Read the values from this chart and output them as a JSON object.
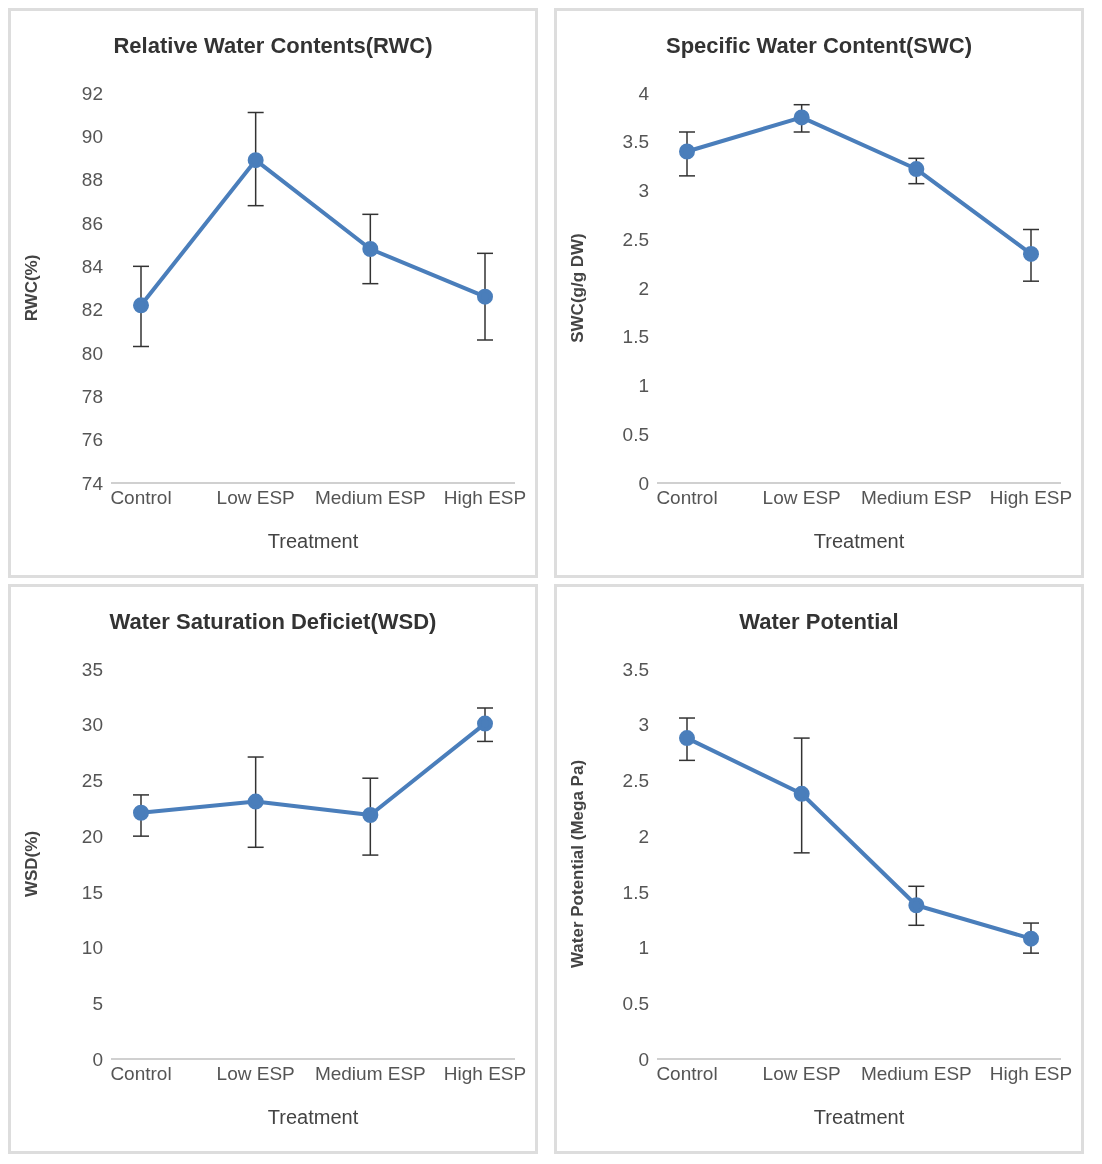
{
  "chart_data": [
    {
      "type": "line",
      "title": "Relative Water Contents(RWC)",
      "xlabel": "Treatment",
      "ylabel": "RWC(%)",
      "categories": [
        "Control",
        "Low ESP",
        "Medium ESP",
        "High ESP"
      ],
      "series": [
        {
          "color": "#4a7ebb",
          "values": [
            82.2,
            88.9,
            84.8,
            82.6
          ],
          "errors": [
            [
              80.3,
              84.0
            ],
            [
              86.8,
              91.1
            ],
            [
              83.2,
              86.4
            ],
            [
              80.6,
              84.6
            ]
          ]
        }
      ],
      "ylim": [
        74,
        92
      ],
      "yticks": [
        74,
        76,
        78,
        80,
        82,
        84,
        86,
        88,
        90,
        92
      ],
      "grid": false,
      "legend": false,
      "marker": "circle",
      "line_style": "solid"
    },
    {
      "type": "line",
      "title": "Specific Water Content(SWC)",
      "xlabel": "Treatment",
      "ylabel": "SWC(g/g DW)",
      "categories": [
        "Control",
        "Low ESP",
        "Medium ESP",
        "High ESP"
      ],
      "series": [
        {
          "color": "#4a7ebb",
          "values": [
            3.4,
            3.75,
            3.22,
            2.35
          ],
          "errors": [
            [
              3.15,
              3.6
            ],
            [
              3.6,
              3.88
            ],
            [
              3.07,
              3.33
            ],
            [
              2.07,
              2.6
            ]
          ]
        }
      ],
      "ylim": [
        0,
        4
      ],
      "yticks": [
        0,
        0.5,
        1,
        1.5,
        2,
        2.5,
        3,
        3.5,
        4
      ],
      "grid": false,
      "legend": false,
      "marker": "circle",
      "line_style": "solid"
    },
    {
      "type": "line",
      "title": "Water Saturation Deficiet(WSD)",
      "xlabel": "Treatment",
      "ylabel": "WSD(%)",
      "categories": [
        "Control",
        "Low ESP",
        "Medium ESP",
        "High ESP"
      ],
      "series": [
        {
          "color": "#4a7ebb",
          "values": [
            22.1,
            23.1,
            21.9,
            30.1
          ],
          "errors": [
            [
              20.0,
              23.7
            ],
            [
              19.0,
              27.1
            ],
            [
              18.3,
              25.2
            ],
            [
              28.5,
              31.5
            ]
          ]
        }
      ],
      "ylim": [
        0,
        35
      ],
      "yticks": [
        0,
        5,
        10,
        15,
        20,
        25,
        30,
        35
      ],
      "grid": false,
      "legend": false,
      "marker": "circle",
      "line_style": "solid"
    },
    {
      "type": "line",
      "title": "Water Potential",
      "xlabel": "Treatment",
      "ylabel": "Water Potential (Mega Pa)",
      "categories": [
        "Control",
        "Low ESP",
        "Medium ESP",
        "High ESP"
      ],
      "series": [
        {
          "color": "#4a7ebb",
          "values": [
            2.88,
            2.38,
            1.38,
            1.08
          ],
          "errors": [
            [
              2.68,
              3.06
            ],
            [
              1.85,
              2.88
            ],
            [
              1.2,
              1.55
            ],
            [
              0.95,
              1.22
            ]
          ]
        }
      ],
      "ylim": [
        0,
        3.5
      ],
      "yticks": [
        0,
        0.5,
        1,
        1.5,
        2,
        2.5,
        3,
        3.5
      ],
      "grid": false,
      "legend": false,
      "marker": "circle",
      "line_style": "solid"
    }
  ]
}
